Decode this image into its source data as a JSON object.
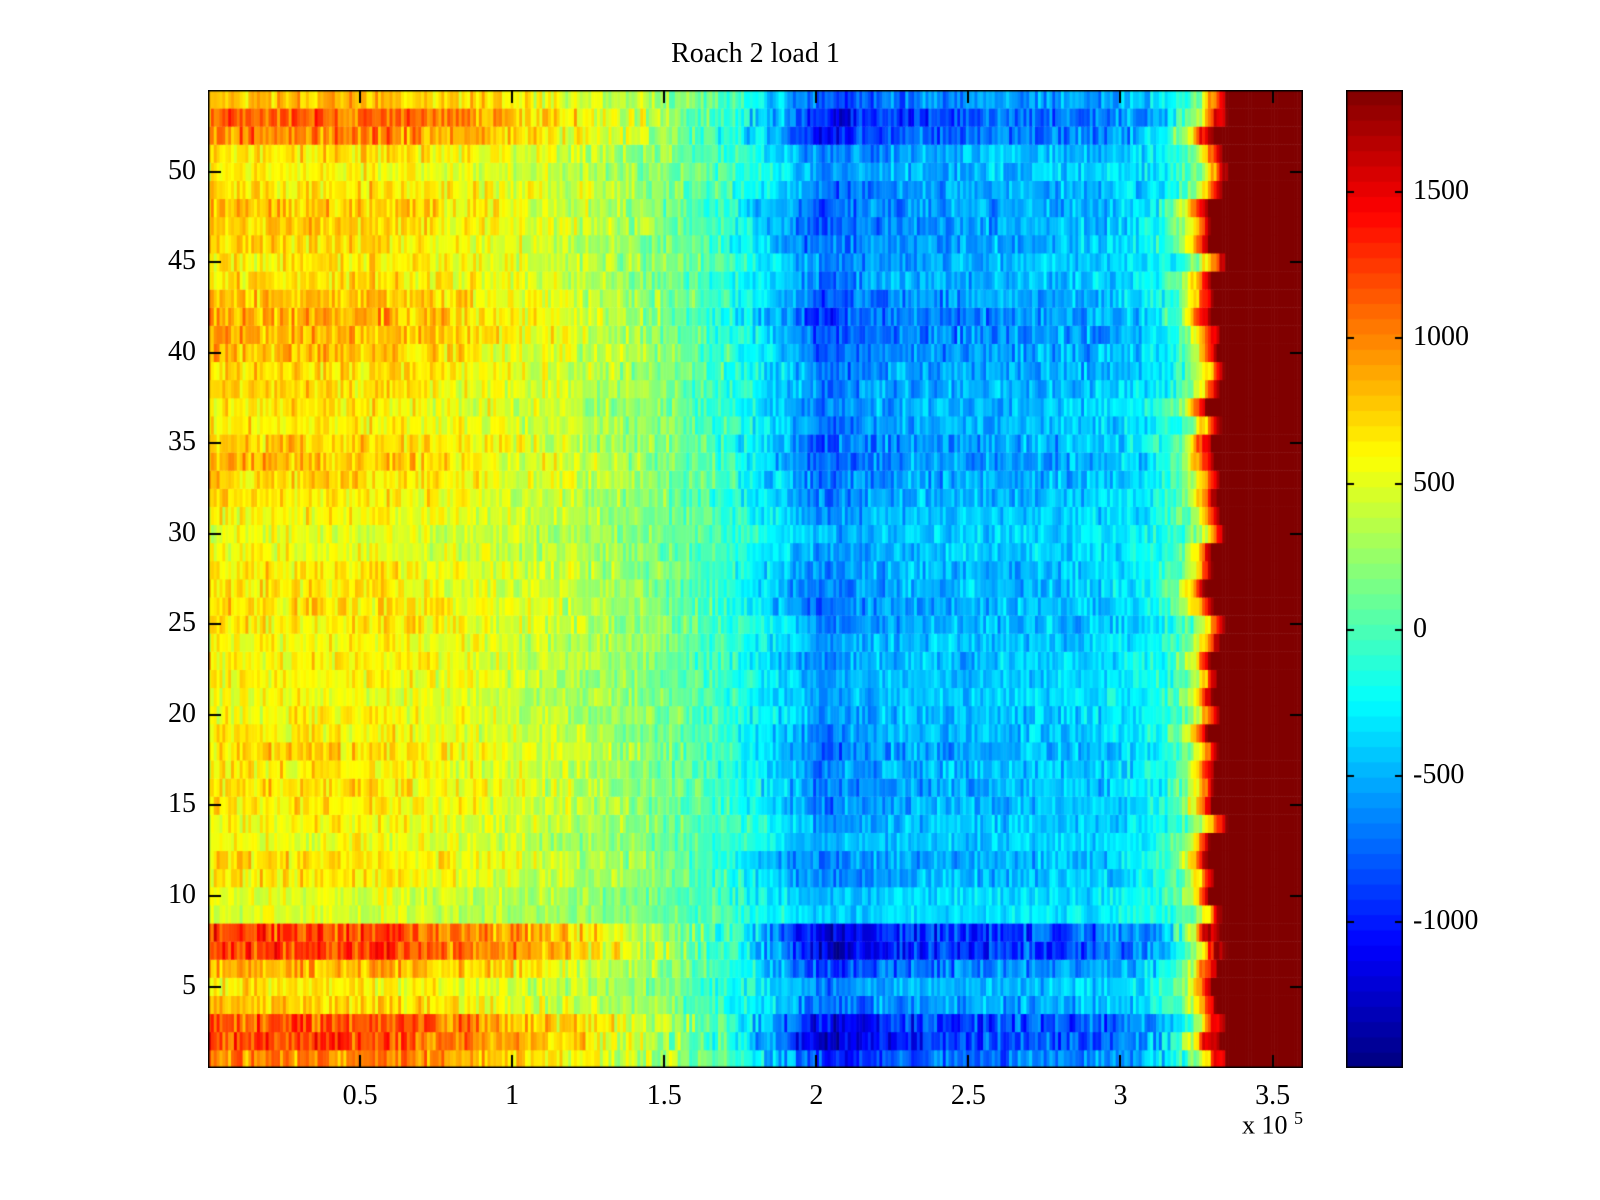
{
  "chart_data": {
    "type": "heatmap",
    "title": "Roach 2 load 1",
    "colormap": "jet",
    "background_color": "#ffffff",
    "x_axis": {
      "range": [
        0,
        3.6
      ],
      "scale_factor": 100000,
      "tick_values": [
        0.5,
        1,
        1.5,
        2,
        2.5,
        3,
        3.5
      ],
      "tick_labels": [
        "0.5",
        "1",
        "1.5",
        "2",
        "2.5",
        "3",
        "3.5"
      ],
      "exponent_prefix": "x 10",
      "exponent_value": "5"
    },
    "y_axis": {
      "range": [
        0.5,
        54.5
      ],
      "tick_values": [
        5,
        10,
        15,
        20,
        25,
        30,
        35,
        40,
        45,
        50
      ],
      "tick_labels": [
        "5",
        "10",
        "15",
        "20",
        "25",
        "30",
        "35",
        "40",
        "45",
        "50"
      ]
    },
    "colorbar": {
      "clim": [
        -1500,
        1850
      ],
      "tick_values": [
        1500,
        1000,
        500,
        0,
        -500,
        -1000
      ],
      "tick_labels": [
        "1500",
        "1000",
        "500",
        "0",
        "-500",
        "-1000"
      ],
      "bands": 64
    },
    "grid": {
      "rows": 54,
      "cols": 380,
      "seed": 7,
      "noise_amp_base": 150,
      "noise_amp_per_gain": 130,
      "boundary_jitter": 0.035,
      "column_jitter": 0.012,
      "saturation_blend_start": 800,
      "saturation_blend_width": 700,
      "base_profile_x": [
        0,
        0.3,
        0.6,
        0.9,
        1.2,
        1.5,
        1.7,
        1.9,
        2.0,
        2.05,
        2.1,
        2.2,
        2.35,
        2.6,
        2.9,
        3.05,
        3.15,
        3.22,
        3.27,
        3.32,
        3.6
      ],
      "base_profile_v": [
        660,
        650,
        640,
        520,
        380,
        170,
        -60,
        -420,
        -620,
        -700,
        -620,
        -540,
        -500,
        -470,
        -420,
        -340,
        -180,
        150,
        800,
        1900,
        1900
      ],
      "row_gains": [
        1.5,
        1.85,
        1.8,
        1.15,
        1.0,
        1.35,
        1.9,
        1.85,
        0.7,
        0.75,
        1.0,
        1.05,
        0.85,
        0.9,
        1.0,
        1.05,
        1.0,
        1.1,
        0.95,
        0.9,
        0.85,
        0.9,
        0.95,
        0.9,
        1.0,
        1.05,
        1.0,
        1.0,
        0.85,
        0.8,
        0.9,
        1.0,
        1.1,
        1.2,
        1.15,
        1.0,
        1.0,
        1.05,
        1.1,
        1.2,
        1.3,
        1.35,
        1.2,
        1.05,
        1.0,
        1.1,
        1.15,
        1.2,
        1.1,
        0.95,
        1.05,
        1.55,
        1.65,
        1.25
      ]
    }
  }
}
